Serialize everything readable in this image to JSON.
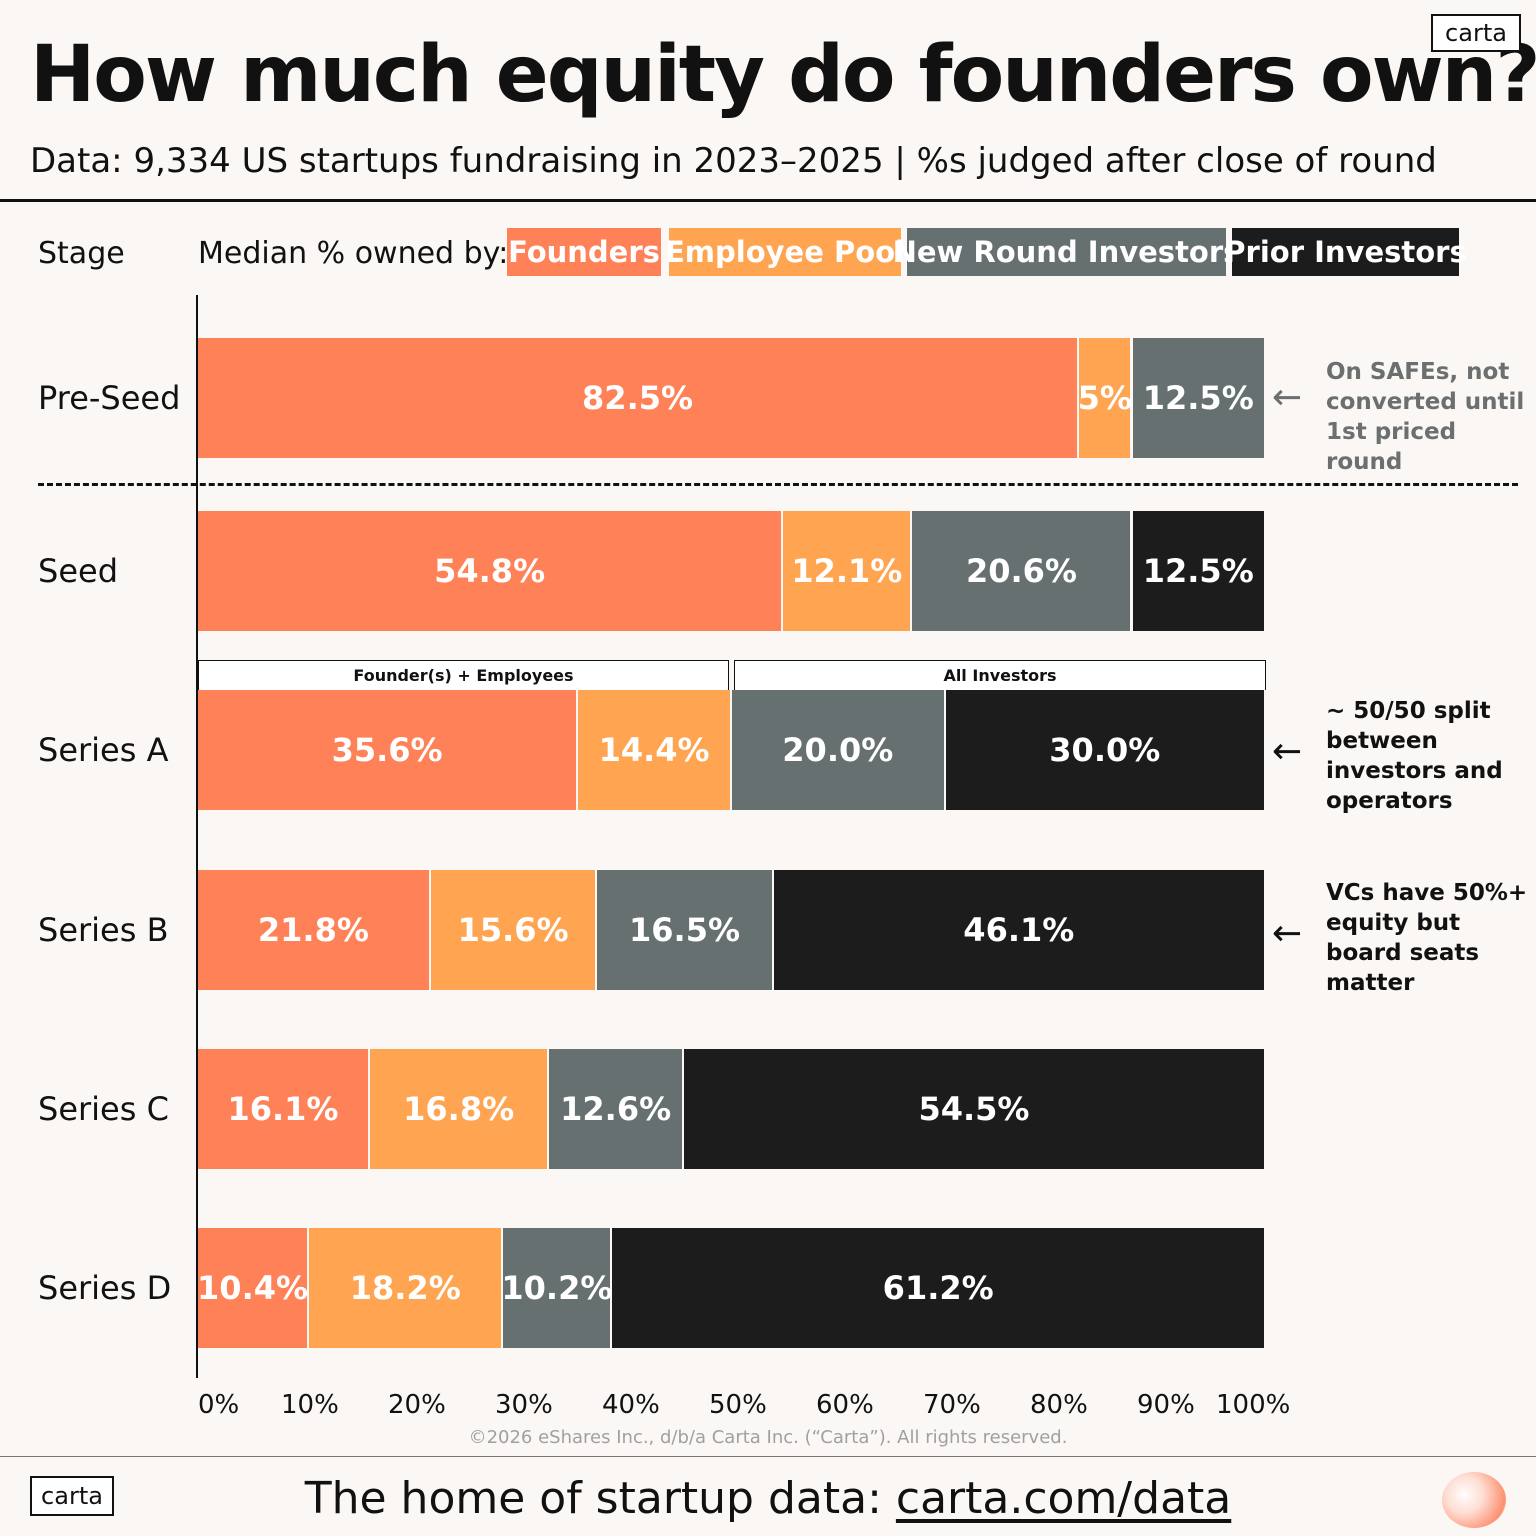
{
  "header": {
    "title": "How much equity do founders own?",
    "subtitle": "Data: 9,334 US startups fundraising in 2023–2025 | %s judged after close of round",
    "logo": "carta"
  },
  "legend": {
    "stage_label": "Stage",
    "median_label": "Median % owned by:",
    "items": [
      {
        "label": "Founders",
        "color": "#ff8158"
      },
      {
        "label": "Employee Pool",
        "color": "#ffa552"
      },
      {
        "label": "New Round Investors",
        "color": "#677070"
      },
      {
        "label": "Prior Investors",
        "color": "#1c1c1c"
      }
    ]
  },
  "chart_data": {
    "type": "bar",
    "orientation": "horizontal",
    "stacked": true,
    "title": "How much equity do founders own?",
    "subtitle": "Data: 9,334 US startups fundraising in 2023–2025 | %s judged after close of round",
    "xlabel": "",
    "ylabel": "Stage",
    "xlim": [
      0,
      100
    ],
    "categories": [
      "Pre-Seed",
      "Seed",
      "Series A",
      "Series B",
      "Series C",
      "Series D"
    ],
    "series": [
      {
        "name": "Founders",
        "values": [
          82.5,
          54.8,
          35.6,
          21.8,
          16.1,
          10.4
        ],
        "labels": [
          "82.5%",
          "54.8%",
          "35.6%",
          "21.8%",
          "16.1%",
          "10.4%"
        ],
        "color": "#ff8158"
      },
      {
        "name": "Employee Pool",
        "values": [
          5,
          12.1,
          14.4,
          15.6,
          16.8,
          18.2
        ],
        "labels": [
          "5%",
          "12.1%",
          "14.4%",
          "15.6%",
          "16.8%",
          "18.2%"
        ],
        "color": "#ffa552"
      },
      {
        "name": "New Round Investors",
        "values": [
          12.5,
          20.6,
          20.0,
          16.5,
          12.6,
          10.2
        ],
        "labels": [
          "12.5%",
          "20.6%",
          "20.0%",
          "16.5%",
          "12.6%",
          "10.2%"
        ],
        "color": "#677070"
      },
      {
        "name": "Prior Investors",
        "values": [
          0,
          12.5,
          30.0,
          46.1,
          54.5,
          61.2
        ],
        "labels": [
          "",
          "12.5%",
          "30.0%",
          "46.1%",
          "54.5%",
          "61.2%"
        ],
        "color": "#1c1c1c"
      }
    ],
    "x_ticks": [
      "0%",
      "10%",
      "20%",
      "30%",
      "40%",
      "50%",
      "60%",
      "70%",
      "80%",
      "90%",
      "100%"
    ],
    "brackets": [
      {
        "label": "Founder(s) + Employees",
        "from": 0,
        "to": 50
      },
      {
        "label": "All Investors",
        "from": 50,
        "to": 100
      }
    ],
    "annotations": [
      {
        "stage": "Pre-Seed",
        "text": "On SAFEs, not converted until 1st priced round"
      },
      {
        "stage": "Series A",
        "text": "~ 50/50 split between investors and operators"
      },
      {
        "stage": "Series B",
        "text": "VCs have 50%+ equity but board seats matter"
      }
    ]
  },
  "annotation_lines": {
    "preseed": [
      "On SAFEs, not",
      "converted until",
      "1st priced round"
    ],
    "seriesA": [
      "~ 50/50 split",
      "between",
      "investors and",
      "operators"
    ],
    "seriesB": [
      "VCs have 50%+",
      "equity but",
      "board seats",
      "matter"
    ]
  },
  "footer": {
    "copyright": "©2026 eShares Inc., d/b/a Carta Inc. (“Carta”). All rights reserved.",
    "tagline": "The home of startup data: ",
    "link": "carta.com/data",
    "logo": "carta"
  }
}
